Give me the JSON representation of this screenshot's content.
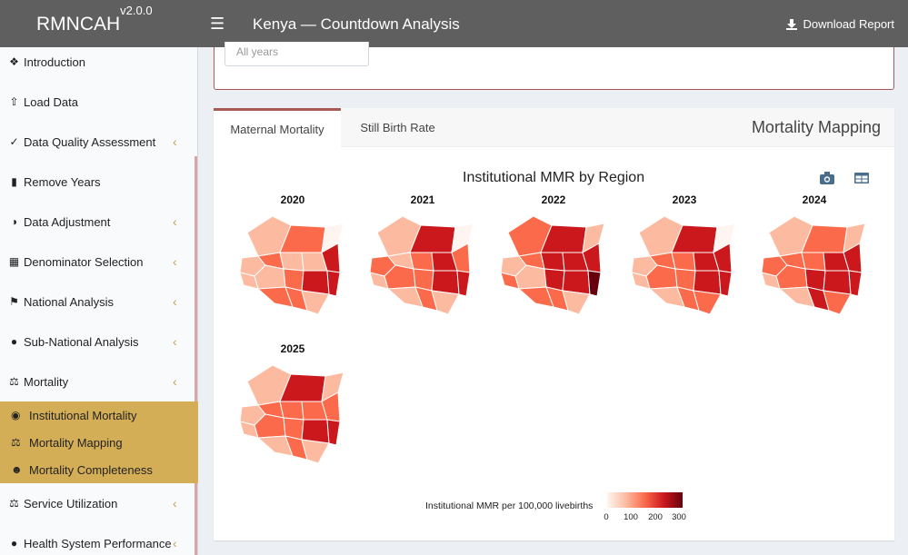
{
  "header": {
    "brand": "RMNCAH",
    "version": "v2.0.0",
    "title": "Kenya — Countdown Analysis",
    "download_label": "Download Report"
  },
  "sidebar": {
    "items": [
      {
        "label": "Introduction",
        "icon": "info-circle-icon",
        "chevron": false
      },
      {
        "label": "Load Data",
        "icon": "upload-icon",
        "chevron": false
      },
      {
        "label": "Data Quality Assessment",
        "icon": "check-circle-icon",
        "chevron": true
      },
      {
        "label": "Remove Years",
        "icon": "trash-icon",
        "chevron": false
      },
      {
        "label": "Data Adjustment",
        "icon": "adjust-icon",
        "chevron": true
      },
      {
        "label": "Denominator Selection",
        "icon": "calculator-icon",
        "chevron": true
      },
      {
        "label": "National Analysis",
        "icon": "flag-icon",
        "chevron": true
      },
      {
        "label": "Sub-National Analysis",
        "icon": "globe-icon",
        "chevron": true
      },
      {
        "label": "Mortality",
        "icon": "scale-icon",
        "chevron": true
      }
    ],
    "subitems": [
      {
        "label": "Institutional Mortality",
        "icon": "map-marker-icon"
      },
      {
        "label": "Mortality Mapping",
        "icon": "scale-icon"
      },
      {
        "label": "Mortality Completeness",
        "icon": "user-slash-icon"
      }
    ],
    "bottom_items": [
      {
        "label": "Service Utilization",
        "icon": "scale-icon",
        "chevron": true
      },
      {
        "label": "Health System Performance",
        "icon": "globe-icon",
        "chevron": true
      }
    ]
  },
  "filter": {
    "placeholder": "All years"
  },
  "tabs": [
    {
      "label": "Maternal Mortality",
      "active": true
    },
    {
      "label": "Still Birth Rate",
      "active": false
    }
  ],
  "card_title": "Mortality Mapping",
  "chart": {
    "title": "Institutional MMR by Region",
    "years": [
      "2020",
      "2021",
      "2022",
      "2023",
      "2024",
      "2025"
    ],
    "legend_title": "Institutional MMR per 100,000 livebirths",
    "legend_ticks": [
      "0",
      "100",
      "200",
      "300"
    ],
    "colors": [
      "#fff5f0",
      "#fcbba1",
      "#fb6a4a",
      "#cb181d",
      "#67000d"
    ]
  }
}
